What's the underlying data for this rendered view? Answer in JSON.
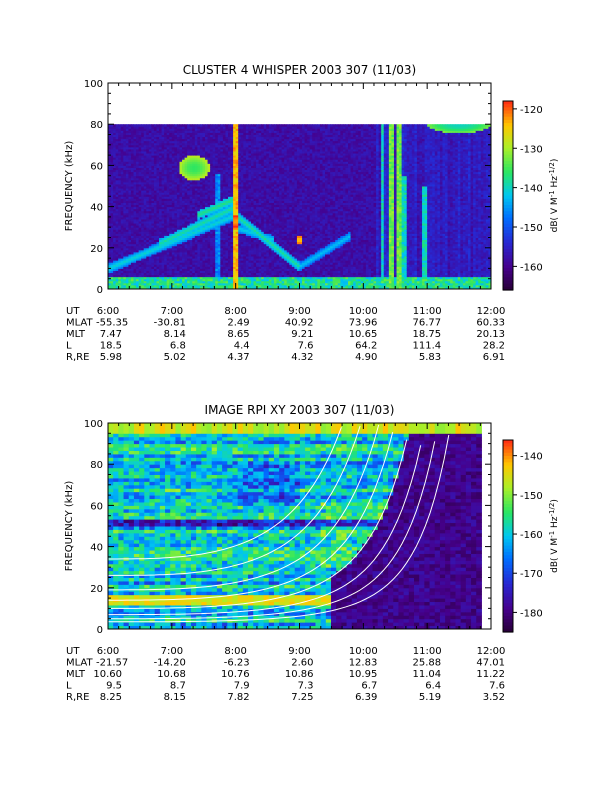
{
  "chart_data": [
    {
      "type": "heatmap",
      "title": "CLUSTER 4 WHISPER 2003 307 (11/03)",
      "ylabel": "FREQUENCY (kHz)",
      "ylim": [
        0,
        100
      ],
      "yticks": [
        "0",
        "20",
        "40",
        "60",
        "80",
        "100"
      ],
      "data_ylim": [
        0,
        80
      ],
      "xlim": [
        "6:00",
        "12:00"
      ],
      "colorbar": {
        "label": "dB( V M⁻¹ Hz⁻¹ᐟ²)",
        "label_parts": [
          "dB( V M",
          "-1",
          " Hz",
          "-1/2",
          ")"
        ],
        "range": [
          -166,
          -118
        ],
        "ticks": [
          "-120",
          "-130",
          "-140",
          "-150",
          "-160"
        ]
      },
      "ephemeris": {
        "row_labels": [
          "UT",
          "MLAT",
          "MLT",
          "L",
          "R,RE"
        ],
        "columns": [
          [
            "6:00",
            "-55.35",
            "7.47",
            "18.5",
            "5.98"
          ],
          [
            "7:00",
            "-30.81",
            "8.14",
            "6.8",
            "5.02"
          ],
          [
            "8:00",
            "2.49",
            "8.65",
            "4.4",
            "4.37"
          ],
          [
            "9:00",
            "40.92",
            "9.21",
            "7.6",
            "4.32"
          ],
          [
            "10:00",
            "73.96",
            "10.65",
            "64.2",
            "4.90"
          ],
          [
            "11:00",
            "76.77",
            "18.75",
            "111.4",
            "5.83"
          ],
          [
            "12:00",
            "60.33",
            "20.13",
            "28.2",
            "6.91"
          ]
        ]
      },
      "features": {
        "background_dB": -158,
        "emission_bands": [
          {
            "t_start": 6.0,
            "t_end": 8.0,
            "f_start": 10,
            "f_end": 36,
            "width": 2.4,
            "dB": -140
          },
          {
            "t_start": 6.8,
            "t_end": 8.0,
            "f_start": 22,
            "f_end": 40,
            "width": 2.2,
            "dB": -138
          },
          {
            "t_start": 7.4,
            "t_end": 8.0,
            "f_start": 36,
            "f_end": 44,
            "width": 2.0,
            "dB": -137
          },
          {
            "t_start": 8.0,
            "t_end": 9.0,
            "f_start": 36,
            "f_end": 11,
            "width": 2.4,
            "dB": -138
          },
          {
            "t_start": 8.0,
            "t_end": 8.6,
            "f_start": 30,
            "f_end": 24,
            "width": 2.0,
            "dB": -141
          },
          {
            "t_start": 9.0,
            "t_end": 9.8,
            "f_start": 11,
            "f_end": 26,
            "width": 2.2,
            "dB": -142
          }
        ],
        "spots": [
          {
            "t": 7.35,
            "f": 59,
            "dt": 0.25,
            "df": 6,
            "dB": -136
          },
          {
            "t": 8.0,
            "f": 33,
            "dt": 0.05,
            "df": 3,
            "dB": -124
          },
          {
            "t": 9.0,
            "f": 24,
            "dt": 0.06,
            "df": 2.5,
            "dB": -125
          },
          {
            "t": 11.5,
            "f": 80,
            "dt": 0.5,
            "df": 4,
            "dB": -140
          }
        ],
        "vertical_lines": [
          {
            "t": 7.72,
            "f_top": 56,
            "dB": -146
          },
          {
            "t": 8.0,
            "f_top": 80,
            "dB": -124
          },
          {
            "t": 10.3,
            "f_top": 80,
            "dB": -140
          },
          {
            "t": 10.45,
            "f_top": 80,
            "dB": -133
          },
          {
            "t": 10.55,
            "f_top": 80,
            "dB": -133
          },
          {
            "t": 10.65,
            "f_top": 55,
            "dB": -140
          },
          {
            "t": 10.95,
            "f_top": 50,
            "dB": -140
          }
        ],
        "baseline_band": {
          "f_max": 6,
          "dB": -138
        }
      }
    },
    {
      "type": "heatmap",
      "title": "IMAGE RPI XY 2003 307 (11/03)",
      "ylabel": "FREQUENCY (kHz)",
      "ylim": [
        0,
        100
      ],
      "yticks": [
        "0",
        "20",
        "40",
        "60",
        "80",
        "100"
      ],
      "xlim": [
        "6:00",
        "12:00"
      ],
      "colorbar": {
        "label": "dB( V M⁻¹ Hz⁻¹ᐟ²)",
        "label_parts": [
          "dB( V M",
          "-1",
          " Hz",
          "-1/2",
          ")"
        ],
        "range": [
          -185,
          -136
        ],
        "ticks": [
          "-140",
          "-150",
          "-160",
          "-170",
          "-180"
        ]
      },
      "ephemeris": {
        "row_labels": [
          "UT",
          "MLAT",
          "MLT",
          "L",
          "R,RE"
        ],
        "columns": [
          [
            "6:00",
            "-21.57",
            "10.60",
            "9.5",
            "8.25"
          ],
          [
            "7:00",
            "-14.20",
            "10.68",
            "8.7",
            "8.15"
          ],
          [
            "8:00",
            "-6.23",
            "10.76",
            "7.9",
            "7.82"
          ],
          [
            "9:00",
            "2.60",
            "10.86",
            "7.3",
            "7.25"
          ],
          [
            "10:00",
            "12.83",
            "10.95",
            "6.7",
            "6.39"
          ],
          [
            "11:00",
            "25.88",
            "11.04",
            "6.4",
            "5.19"
          ],
          [
            "12:00",
            "47.01",
            "11.22",
            "7.6",
            "3.52"
          ]
        ]
      },
      "features": {
        "data_t_end": 11.85,
        "white_curves_kHz_at_start": [
          3.5,
          5,
          7,
          10,
          14,
          19,
          26,
          34
        ],
        "white_curves_growth": 8.5,
        "low_band_dB": -145,
        "dark_band_f": [
          50,
          54
        ]
      }
    }
  ]
}
